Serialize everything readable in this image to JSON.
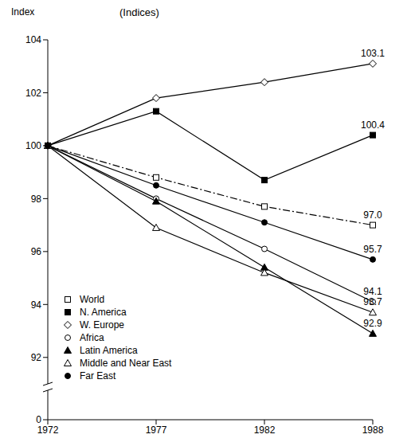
{
  "chart_data": {
    "type": "line",
    "title": "(Indices)",
    "y_label": "Index",
    "categories": [
      "1972",
      "1977",
      "1982",
      "1988"
    ],
    "ylim": [
      0,
      104
    ],
    "yticks": [
      0,
      92,
      94,
      96,
      98,
      100,
      102,
      104
    ],
    "grid": false,
    "legend": "lower left",
    "data_labels": true,
    "series": [
      {
        "name": "World",
        "color": "#000000",
        "marker": "open_square",
        "line_style": "dashdot",
        "values": [
          100,
          98.8,
          97.7,
          97.0
        ],
        "value_labels": [
          null,
          null,
          null,
          "97.0"
        ]
      },
      {
        "name": "N. America",
        "color": "#000000",
        "marker": "filled_square",
        "line_style": "solid",
        "values": [
          100,
          101.3,
          98.7,
          100.4
        ],
        "value_labels": [
          null,
          null,
          null,
          "100.4"
        ]
      },
      {
        "name": "W. Europe",
        "color": "#000000",
        "marker": "open_diamond",
        "line_style": "solid",
        "values": [
          100,
          101.8,
          102.4,
          103.1
        ],
        "value_labels": [
          null,
          null,
          null,
          "103.1"
        ]
      },
      {
        "name": "Africa",
        "color": "#000000",
        "marker": "open_circle",
        "line_style": "solid",
        "values": [
          100,
          98.0,
          96.1,
          94.1
        ],
        "value_labels": [
          null,
          null,
          null,
          "94.1"
        ]
      },
      {
        "name": "Latin America",
        "color": "#000000",
        "marker": "filled_triangle",
        "line_style": "solid",
        "values": [
          100,
          97.9,
          95.4,
          92.9
        ],
        "value_labels": [
          null,
          null,
          null,
          "92.9"
        ]
      },
      {
        "name": "Middle and Near East",
        "color": "#000000",
        "marker": "open_triangle",
        "line_style": "solid",
        "values": [
          100,
          96.9,
          95.2,
          93.7
        ],
        "value_labels": [
          null,
          null,
          null,
          "93.7"
        ]
      },
      {
        "name": "Far East",
        "color": "#000000",
        "marker": "filled_circle",
        "line_style": "solid",
        "values": [
          100,
          98.5,
          97.1,
          95.7
        ],
        "value_labels": [
          null,
          null,
          null,
          "95.7"
        ]
      }
    ]
  }
}
